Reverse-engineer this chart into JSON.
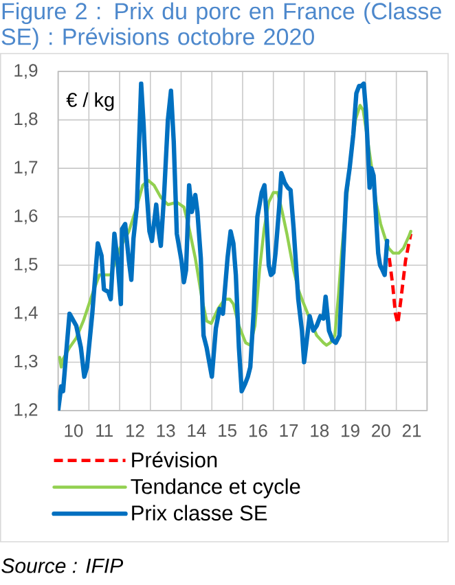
{
  "chart_data": {
    "type": "line",
    "title": "Figure 2 : Prix du porc en France (Classe SE) : Prévisions octobre 2020",
    "ylabel": "€ / kg",
    "annotations": [
      "Source : IFIP"
    ],
    "xlim": [
      9.5,
      21.5
    ],
    "ylim": [
      1.2,
      1.9
    ],
    "xticks": [
      {
        "value": 9.5,
        "label": null
      },
      10,
      {
        "value": 10.5,
        "label": null
      },
      11,
      {
        "value": 11.5,
        "label": null
      },
      12,
      {
        "value": 12.5,
        "label": null
      },
      13,
      {
        "value": 13.5,
        "label": null
      },
      14,
      {
        "value": 14.5,
        "label": null
      },
      15,
      {
        "value": 15.5,
        "label": null
      },
      16,
      {
        "value": 16.5,
        "label": null
      },
      17,
      {
        "value": 17.5,
        "label": null
      },
      18,
      {
        "value": 18.5,
        "label": null
      },
      19,
      {
        "value": 19.5,
        "label": null
      },
      20,
      {
        "value": 20.5,
        "label": null
      },
      21,
      {
        "value": 21.5,
        "label": null
      }
    ],
    "yticks": [
      {
        "value": 1.2,
        "label": "1,2"
      },
      {
        "value": 1.3,
        "label": "1,3"
      },
      {
        "value": 1.4,
        "label": "1,4"
      },
      {
        "value": 1.5,
        "label": "1,5"
      },
      {
        "value": 1.6,
        "label": "1,6"
      },
      {
        "value": 1.7,
        "label": "1,7"
      },
      {
        "value": 1.8,
        "label": "1,8"
      },
      {
        "value": 1.9,
        "label": "1,9"
      }
    ],
    "grid": true,
    "legend": "bottom",
    "series": [
      {
        "name": "Prévision",
        "color": "#ff0000",
        "line_style": "dashed",
        "x": [
          20.27,
          20.38,
          20.47,
          20.55,
          20.65,
          20.8,
          20.97
        ],
        "values": [
          1.515,
          1.46,
          1.4,
          1.38,
          1.43,
          1.51,
          1.565
        ]
      },
      {
        "name": "Tendance et cycle",
        "color": "#92d050",
        "x": [
          9.55,
          9.6,
          9.65,
          9.87,
          10.09,
          10.32,
          10.61,
          10.84,
          11.21,
          11.51,
          11.8,
          12.03,
          12.25,
          12.43,
          12.62,
          12.84,
          13.07,
          13.36,
          13.59,
          13.73,
          13.96,
          14.18,
          14.33,
          14.48,
          14.7,
          14.92,
          15.08,
          15.2,
          15.38,
          15.6,
          15.75,
          15.9,
          16.05,
          16.2,
          16.35,
          16.5,
          16.64,
          16.79,
          16.94,
          17.16,
          17.31,
          17.46,
          17.68,
          17.91,
          18.13,
          18.23,
          18.35,
          18.5,
          18.62,
          18.72,
          18.87,
          19.02,
          19.17,
          19.32,
          19.42,
          19.54,
          19.69,
          19.84,
          19.99,
          20.14,
          20.25,
          20.4,
          20.58,
          20.73,
          20.91,
          20.97
        ],
        "values": [
          1.31,
          1.29,
          1.305,
          1.33,
          1.35,
          1.385,
          1.44,
          1.48,
          1.48,
          1.535,
          1.57,
          1.615,
          1.665,
          1.675,
          1.665,
          1.64,
          1.625,
          1.63,
          1.62,
          1.585,
          1.515,
          1.43,
          1.385,
          1.38,
          1.41,
          1.43,
          1.43,
          1.42,
          1.375,
          1.34,
          1.335,
          1.375,
          1.49,
          1.575,
          1.63,
          1.65,
          1.65,
          1.61,
          1.565,
          1.49,
          1.45,
          1.425,
          1.39,
          1.355,
          1.34,
          1.335,
          1.34,
          1.355,
          1.44,
          1.525,
          1.63,
          1.725,
          1.8,
          1.83,
          1.82,
          1.77,
          1.705,
          1.63,
          1.585,
          1.555,
          1.535,
          1.525,
          1.525,
          1.535,
          1.56,
          1.57
        ]
      },
      {
        "name": "Prix classe SE",
        "color": "#0070c0",
        "x": [
          9.5,
          9.6,
          9.66,
          9.75,
          9.87,
          10.09,
          10.24,
          10.35,
          10.44,
          10.61,
          10.79,
          10.91,
          10.99,
          11.13,
          11.21,
          11.33,
          11.43,
          11.54,
          11.58,
          11.68,
          11.8,
          11.88,
          11.95,
          12.06,
          12.2,
          12.28,
          12.37,
          12.47,
          12.55,
          12.69,
          12.77,
          12.84,
          12.95,
          13.07,
          13.17,
          13.26,
          13.36,
          13.51,
          13.59,
          13.66,
          13.76,
          13.85,
          13.96,
          14.03,
          14.14,
          14.23,
          14.33,
          14.5,
          14.63,
          14.75,
          14.86,
          15.01,
          15.11,
          15.2,
          15.28,
          15.38,
          15.47,
          15.58,
          15.67,
          15.75,
          15.86,
          15.98,
          16.12,
          16.21,
          16.27,
          16.35,
          16.42,
          16.5,
          16.57,
          16.69,
          16.76,
          16.87,
          16.97,
          17.06,
          17.16,
          17.31,
          17.43,
          17.5,
          17.68,
          17.8,
          17.91,
          18.03,
          18.13,
          18.2,
          18.31,
          18.43,
          18.53,
          18.65,
          18.77,
          18.87,
          18.98,
          19.1,
          19.2,
          19.29,
          19.36,
          19.44,
          19.51,
          19.57,
          19.63,
          19.69,
          19.76,
          19.84,
          19.91,
          19.97,
          20.05,
          20.12,
          20.2
        ],
        "values": [
          1.2,
          1.25,
          1.24,
          1.31,
          1.4,
          1.375,
          1.33,
          1.27,
          1.29,
          1.4,
          1.545,
          1.52,
          1.45,
          1.445,
          1.43,
          1.565,
          1.51,
          1.42,
          1.575,
          1.585,
          1.51,
          1.47,
          1.555,
          1.62,
          1.875,
          1.79,
          1.66,
          1.57,
          1.55,
          1.625,
          1.57,
          1.54,
          1.65,
          1.8,
          1.86,
          1.755,
          1.565,
          1.51,
          1.465,
          1.49,
          1.665,
          1.61,
          1.645,
          1.61,
          1.515,
          1.355,
          1.33,
          1.27,
          1.37,
          1.41,
          1.4,
          1.515,
          1.57,
          1.545,
          1.48,
          1.33,
          1.24,
          1.255,
          1.27,
          1.29,
          1.405,
          1.6,
          1.65,
          1.665,
          1.61,
          1.5,
          1.48,
          1.485,
          1.525,
          1.62,
          1.69,
          1.67,
          1.66,
          1.655,
          1.575,
          1.43,
          1.365,
          1.3,
          1.395,
          1.365,
          1.375,
          1.395,
          1.39,
          1.435,
          1.365,
          1.345,
          1.34,
          1.355,
          1.515,
          1.65,
          1.7,
          1.77,
          1.855,
          1.87,
          1.87,
          1.875,
          1.82,
          1.745,
          1.66,
          1.7,
          1.685,
          1.6,
          1.525,
          1.5,
          1.49,
          1.48,
          1.55
        ]
      }
    ]
  }
}
